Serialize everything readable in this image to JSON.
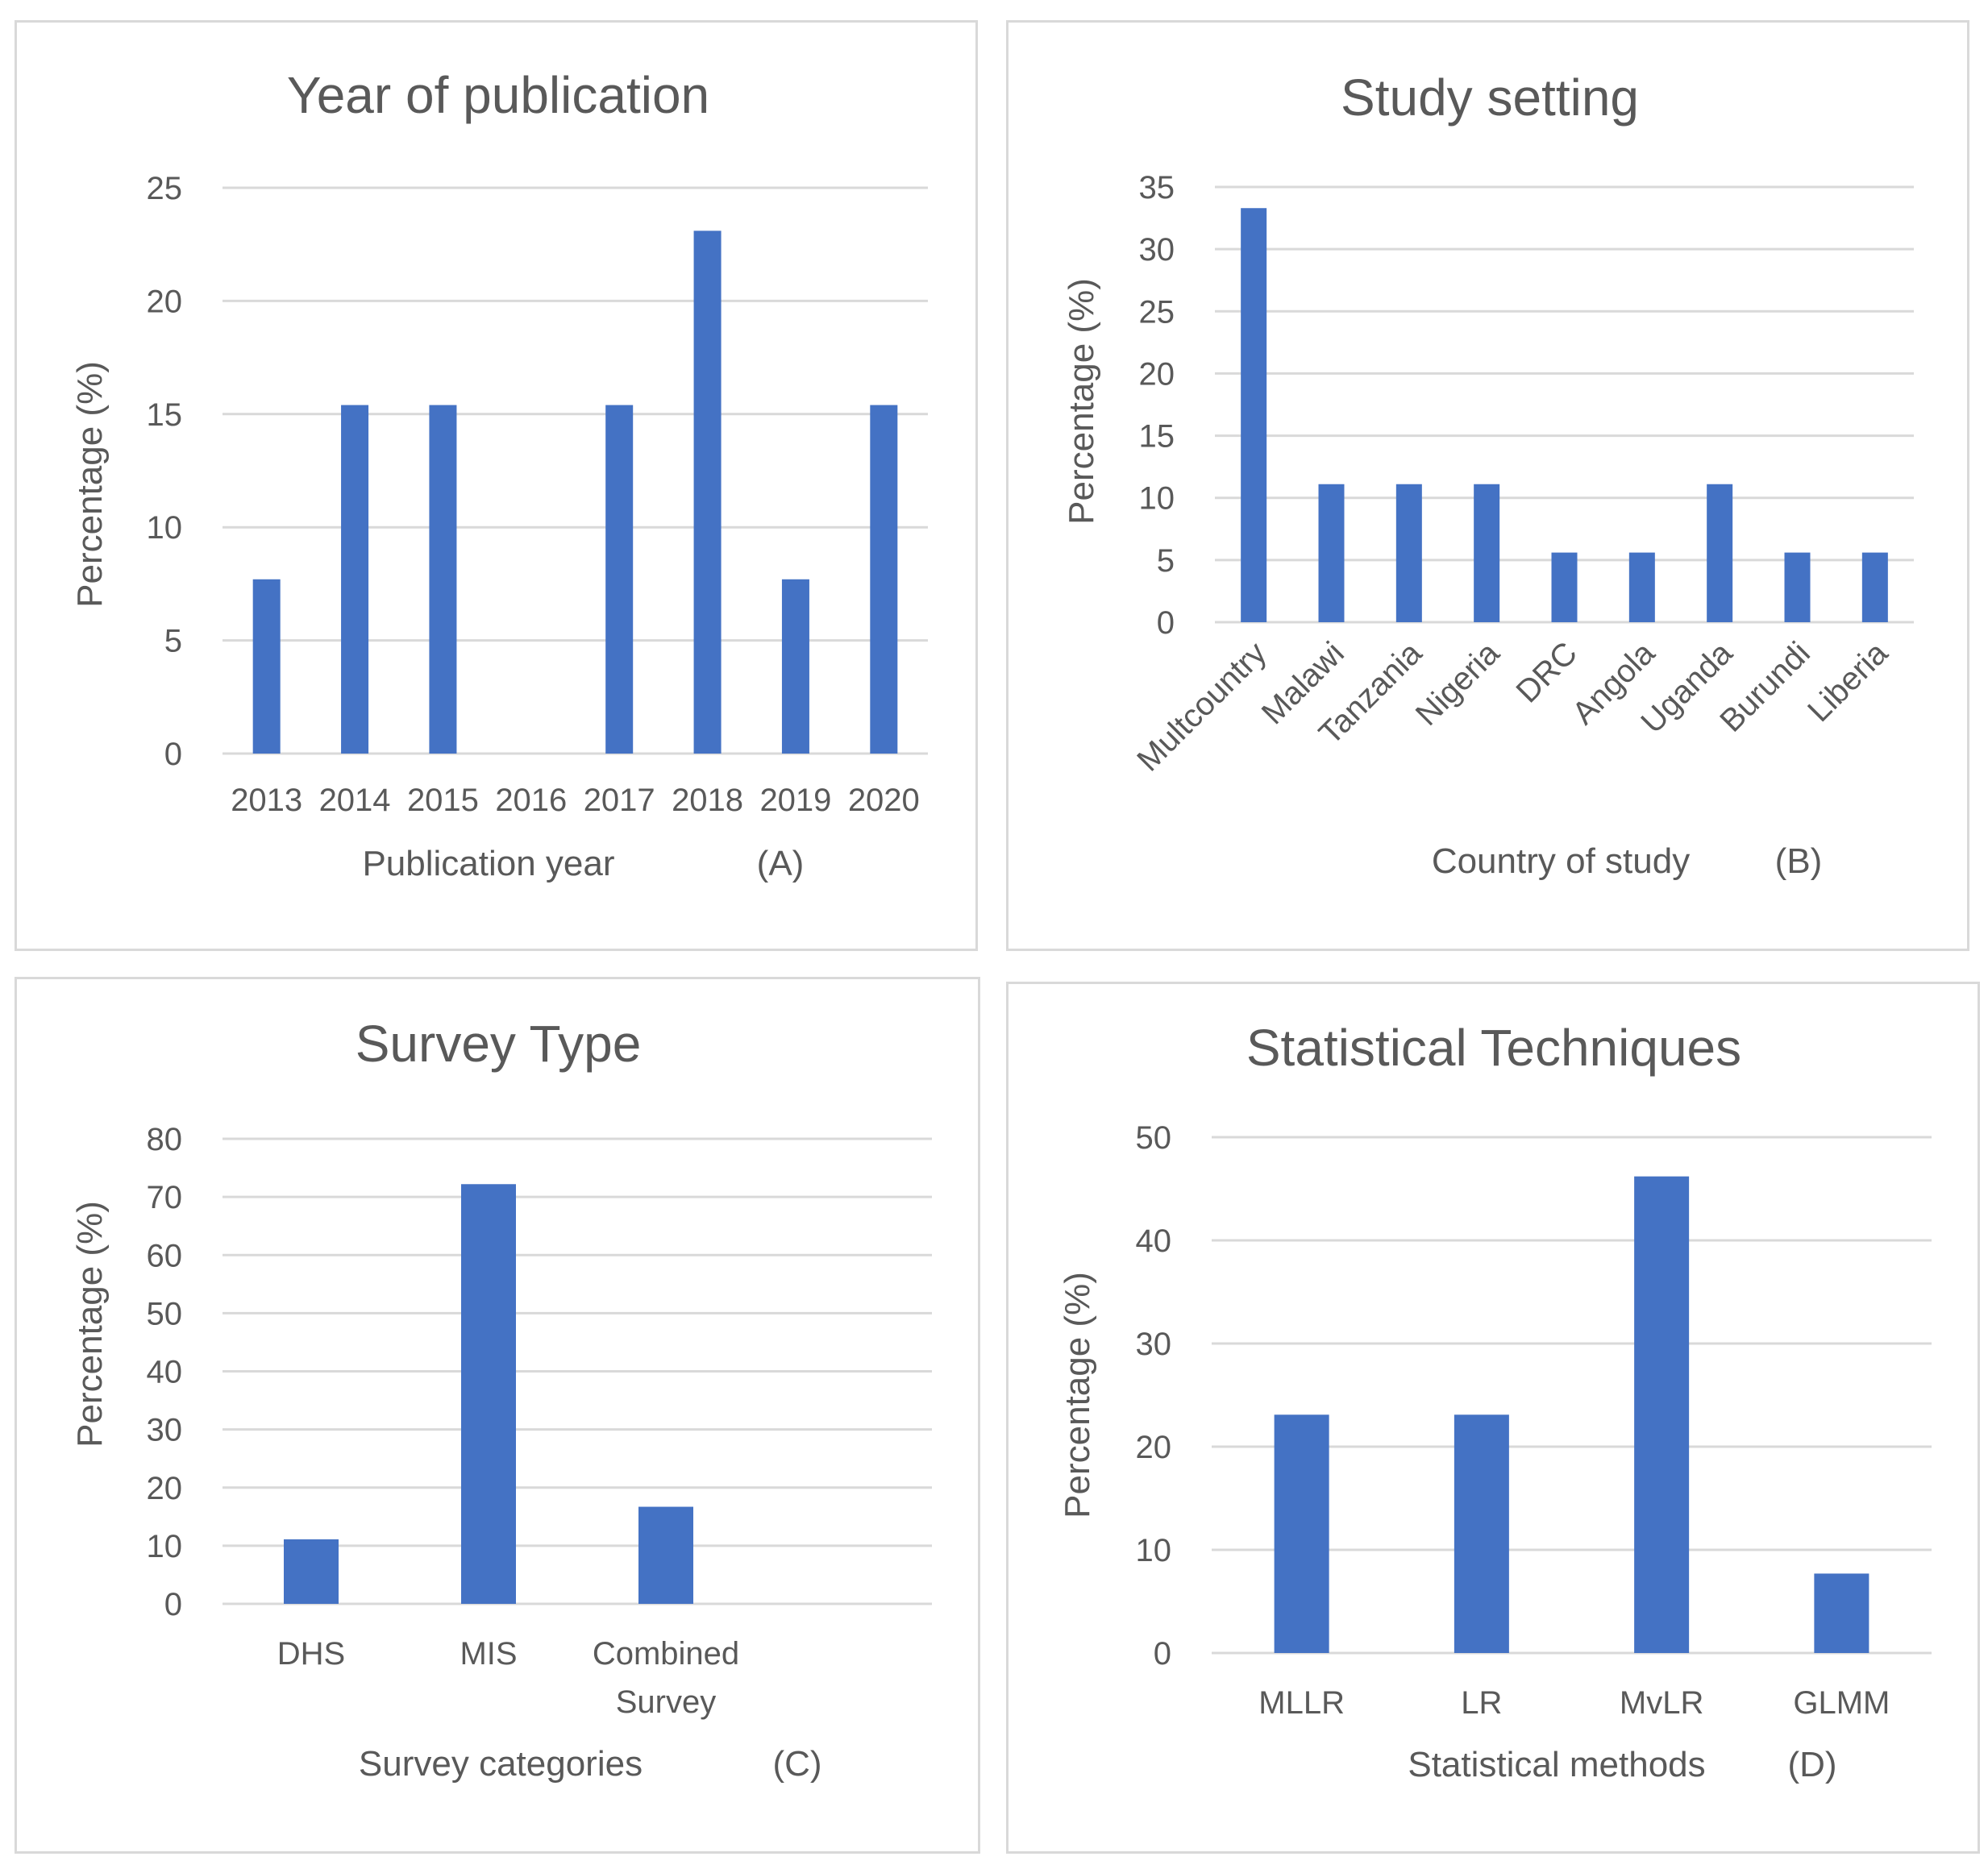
{
  "chart_data": [
    {
      "id": "A",
      "type": "bar",
      "title": "Year of publication",
      "categories": [
        "2013",
        "2014",
        "2015",
        "2016",
        "2017",
        "2018",
        "2019",
        "2020"
      ],
      "values": [
        7.7,
        15.4,
        15.4,
        0,
        15.4,
        23.1,
        7.7,
        15.4
      ],
      "xlabel": "Publication year",
      "panel_label": "(A)",
      "ylabel": "Percentage (%)",
      "ylim": [
        0,
        25
      ],
      "yticks": [
        0,
        5,
        10,
        15,
        20,
        25
      ],
      "grid": true,
      "color": "#4472c4"
    },
    {
      "id": "B",
      "type": "bar",
      "title": "Study setting",
      "categories": [
        "Multcountry",
        "Malawi",
        "Tanzania",
        "Nigeria",
        "DRC",
        "Angola",
        "Uganda",
        "Burundi",
        "Liberia"
      ],
      "values": [
        33.3,
        11.1,
        11.1,
        11.1,
        5.6,
        5.6,
        11.1,
        5.6,
        5.6
      ],
      "xlabel": "Country of study",
      "panel_label": "(B)",
      "ylabel": "Percentage (%)",
      "ylim": [
        0,
        35
      ],
      "yticks": [
        0,
        5,
        10,
        15,
        20,
        25,
        30,
        35
      ],
      "grid": true,
      "color": "#4472c4"
    },
    {
      "id": "C",
      "type": "bar",
      "title": "Survey Type",
      "categories": [
        [
          "DHS"
        ],
        [
          "MIS"
        ],
        [
          "Combined",
          "Survey"
        ]
      ],
      "values": [
        11.1,
        72.2,
        16.7
      ],
      "xlabel": "Survey categories",
      "panel_label": "(C)",
      "ylabel": "Percentage (%)",
      "ylim": [
        0,
        80
      ],
      "yticks": [
        0,
        10,
        20,
        30,
        40,
        50,
        60,
        70,
        80
      ],
      "grid": true,
      "color": "#4472c4"
    },
    {
      "id": "D",
      "type": "bar",
      "title": "Statistical Techniques",
      "categories": [
        "MLLR",
        "LR",
        "MvLR",
        "GLMM"
      ],
      "values": [
        23.1,
        23.1,
        46.2,
        7.7
      ],
      "xlabel": "Statistical methods",
      "panel_label": "(D)",
      "ylabel": "Percentage (%)",
      "ylim": [
        0,
        50
      ],
      "yticks": [
        0,
        10,
        20,
        30,
        40,
        50
      ],
      "grid": true,
      "color": "#4472c4"
    }
  ]
}
